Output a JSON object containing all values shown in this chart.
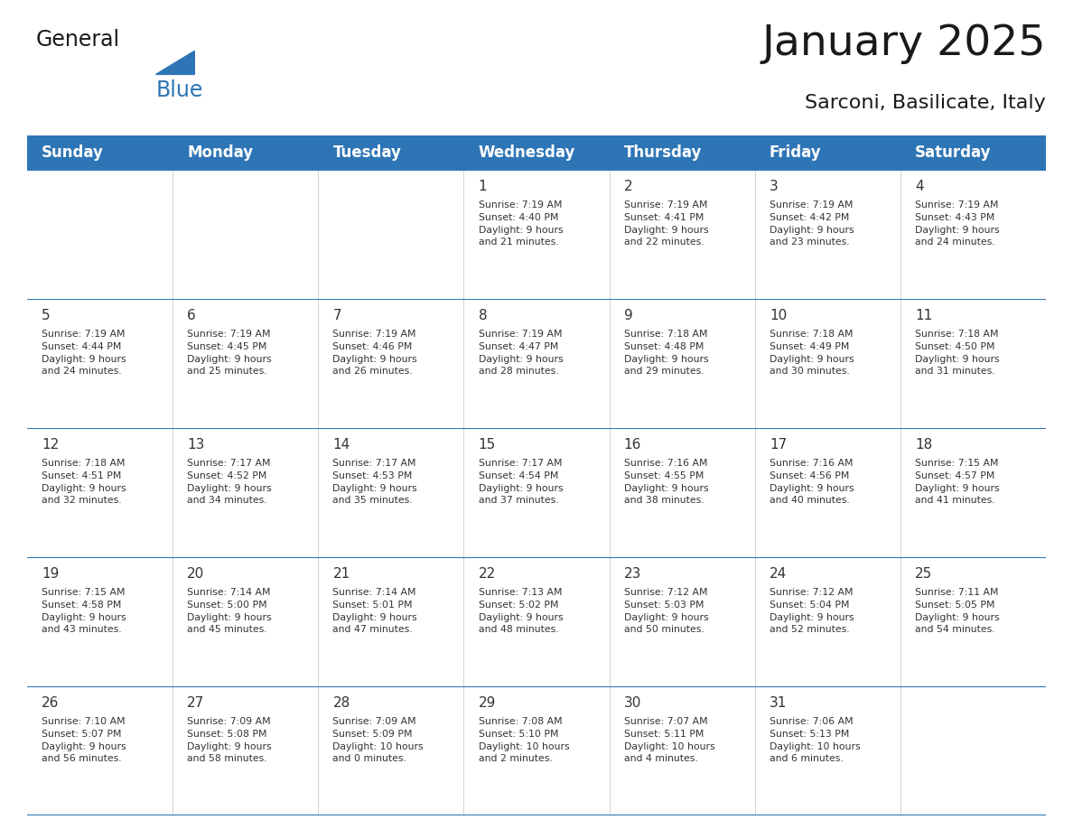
{
  "title": "January 2025",
  "subtitle": "Sarconi, Basilicate, Italy",
  "header_bg_color": "#2E75B6",
  "header_text_color": "#FFFFFF",
  "header_days": [
    "Sunday",
    "Monday",
    "Tuesday",
    "Wednesday",
    "Thursday",
    "Friday",
    "Saturday"
  ],
  "cell_border_color": "#2E75B6",
  "cell_divider_color": "#CCCCCC",
  "title_color": "#1a1a1a",
  "subtitle_color": "#1a1a1a",
  "logo_general_color": "#1a1a1a",
  "logo_blue_color": "#2E75B6",
  "row_bg_color": "#FFFFFF",
  "alt_row_bg_color": "#F5F5F5",
  "weeks": [
    {
      "days": [
        {
          "date": "",
          "info": ""
        },
        {
          "date": "",
          "info": ""
        },
        {
          "date": "",
          "info": ""
        },
        {
          "date": "1",
          "info": "Sunrise: 7:19 AM\nSunset: 4:40 PM\nDaylight: 9 hours\nand 21 minutes."
        },
        {
          "date": "2",
          "info": "Sunrise: 7:19 AM\nSunset: 4:41 PM\nDaylight: 9 hours\nand 22 minutes."
        },
        {
          "date": "3",
          "info": "Sunrise: 7:19 AM\nSunset: 4:42 PM\nDaylight: 9 hours\nand 23 minutes."
        },
        {
          "date": "4",
          "info": "Sunrise: 7:19 AM\nSunset: 4:43 PM\nDaylight: 9 hours\nand 24 minutes."
        }
      ]
    },
    {
      "days": [
        {
          "date": "5",
          "info": "Sunrise: 7:19 AM\nSunset: 4:44 PM\nDaylight: 9 hours\nand 24 minutes."
        },
        {
          "date": "6",
          "info": "Sunrise: 7:19 AM\nSunset: 4:45 PM\nDaylight: 9 hours\nand 25 minutes."
        },
        {
          "date": "7",
          "info": "Sunrise: 7:19 AM\nSunset: 4:46 PM\nDaylight: 9 hours\nand 26 minutes."
        },
        {
          "date": "8",
          "info": "Sunrise: 7:19 AM\nSunset: 4:47 PM\nDaylight: 9 hours\nand 28 minutes."
        },
        {
          "date": "9",
          "info": "Sunrise: 7:18 AM\nSunset: 4:48 PM\nDaylight: 9 hours\nand 29 minutes."
        },
        {
          "date": "10",
          "info": "Sunrise: 7:18 AM\nSunset: 4:49 PM\nDaylight: 9 hours\nand 30 minutes."
        },
        {
          "date": "11",
          "info": "Sunrise: 7:18 AM\nSunset: 4:50 PM\nDaylight: 9 hours\nand 31 minutes."
        }
      ]
    },
    {
      "days": [
        {
          "date": "12",
          "info": "Sunrise: 7:18 AM\nSunset: 4:51 PM\nDaylight: 9 hours\nand 32 minutes."
        },
        {
          "date": "13",
          "info": "Sunrise: 7:17 AM\nSunset: 4:52 PM\nDaylight: 9 hours\nand 34 minutes."
        },
        {
          "date": "14",
          "info": "Sunrise: 7:17 AM\nSunset: 4:53 PM\nDaylight: 9 hours\nand 35 minutes."
        },
        {
          "date": "15",
          "info": "Sunrise: 7:17 AM\nSunset: 4:54 PM\nDaylight: 9 hours\nand 37 minutes."
        },
        {
          "date": "16",
          "info": "Sunrise: 7:16 AM\nSunset: 4:55 PM\nDaylight: 9 hours\nand 38 minutes."
        },
        {
          "date": "17",
          "info": "Sunrise: 7:16 AM\nSunset: 4:56 PM\nDaylight: 9 hours\nand 40 minutes."
        },
        {
          "date": "18",
          "info": "Sunrise: 7:15 AM\nSunset: 4:57 PM\nDaylight: 9 hours\nand 41 minutes."
        }
      ]
    },
    {
      "days": [
        {
          "date": "19",
          "info": "Sunrise: 7:15 AM\nSunset: 4:58 PM\nDaylight: 9 hours\nand 43 minutes."
        },
        {
          "date": "20",
          "info": "Sunrise: 7:14 AM\nSunset: 5:00 PM\nDaylight: 9 hours\nand 45 minutes."
        },
        {
          "date": "21",
          "info": "Sunrise: 7:14 AM\nSunset: 5:01 PM\nDaylight: 9 hours\nand 47 minutes."
        },
        {
          "date": "22",
          "info": "Sunrise: 7:13 AM\nSunset: 5:02 PM\nDaylight: 9 hours\nand 48 minutes."
        },
        {
          "date": "23",
          "info": "Sunrise: 7:12 AM\nSunset: 5:03 PM\nDaylight: 9 hours\nand 50 minutes."
        },
        {
          "date": "24",
          "info": "Sunrise: 7:12 AM\nSunset: 5:04 PM\nDaylight: 9 hours\nand 52 minutes."
        },
        {
          "date": "25",
          "info": "Sunrise: 7:11 AM\nSunset: 5:05 PM\nDaylight: 9 hours\nand 54 minutes."
        }
      ]
    },
    {
      "days": [
        {
          "date": "26",
          "info": "Sunrise: 7:10 AM\nSunset: 5:07 PM\nDaylight: 9 hours\nand 56 minutes."
        },
        {
          "date": "27",
          "info": "Sunrise: 7:09 AM\nSunset: 5:08 PM\nDaylight: 9 hours\nand 58 minutes."
        },
        {
          "date": "28",
          "info": "Sunrise: 7:09 AM\nSunset: 5:09 PM\nDaylight: 10 hours\nand 0 minutes."
        },
        {
          "date": "29",
          "info": "Sunrise: 7:08 AM\nSunset: 5:10 PM\nDaylight: 10 hours\nand 2 minutes."
        },
        {
          "date": "30",
          "info": "Sunrise: 7:07 AM\nSunset: 5:11 PM\nDaylight: 10 hours\nand 4 minutes."
        },
        {
          "date": "31",
          "info": "Sunrise: 7:06 AM\nSunset: 5:13 PM\nDaylight: 10 hours\nand 6 minutes."
        },
        {
          "date": "",
          "info": ""
        }
      ]
    }
  ]
}
